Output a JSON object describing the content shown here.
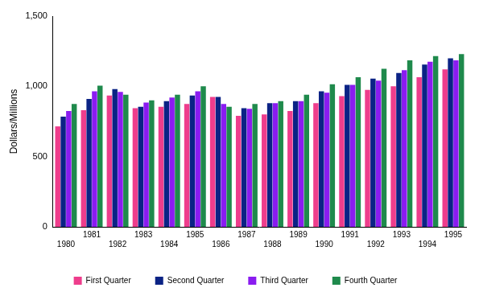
{
  "chart_data": {
    "type": "bar",
    "y_label": "Dollars/Millions",
    "categories": [
      "1980",
      "1981",
      "1982",
      "1983",
      "1984",
      "1985",
      "1986",
      "1987",
      "1988",
      "1989",
      "1990",
      "1991",
      "1992",
      "1993",
      "1994",
      "1995"
    ],
    "series": [
      {
        "name": "First Quarter",
        "color": "#ee3d8c",
        "values": [
          715,
          830,
          935,
          845,
          855,
          875,
          925,
          790,
          800,
          825,
          880,
          930,
          975,
          1000,
          1065,
          1120
        ]
      },
      {
        "name": "Second Quarter",
        "color": "#0b2385",
        "values": [
          785,
          910,
          980,
          855,
          895,
          935,
          925,
          845,
          880,
          895,
          965,
          1010,
          1055,
          1095,
          1155,
          1200
        ]
      },
      {
        "name": "Third Quarter",
        "color": "#8a1cf0",
        "values": [
          825,
          965,
          960,
          885,
          920,
          965,
          875,
          840,
          880,
          895,
          955,
          1010,
          1040,
          1115,
          1175,
          1185
        ]
      },
      {
        "name": "Fourth Quarter",
        "color": "#1f8a4c",
        "values": [
          875,
          1005,
          940,
          900,
          940,
          1000,
          855,
          875,
          895,
          940,
          1015,
          1065,
          1125,
          1185,
          1215,
          1230
        ]
      }
    ],
    "ylim": [
      0,
      1500
    ],
    "yticks": [
      0,
      500,
      {
        "value": 1000,
        "label": "1,000"
      },
      {
        "value": 1500,
        "label": "1,500"
      }
    ],
    "grid": false,
    "legend": "bottom"
  }
}
